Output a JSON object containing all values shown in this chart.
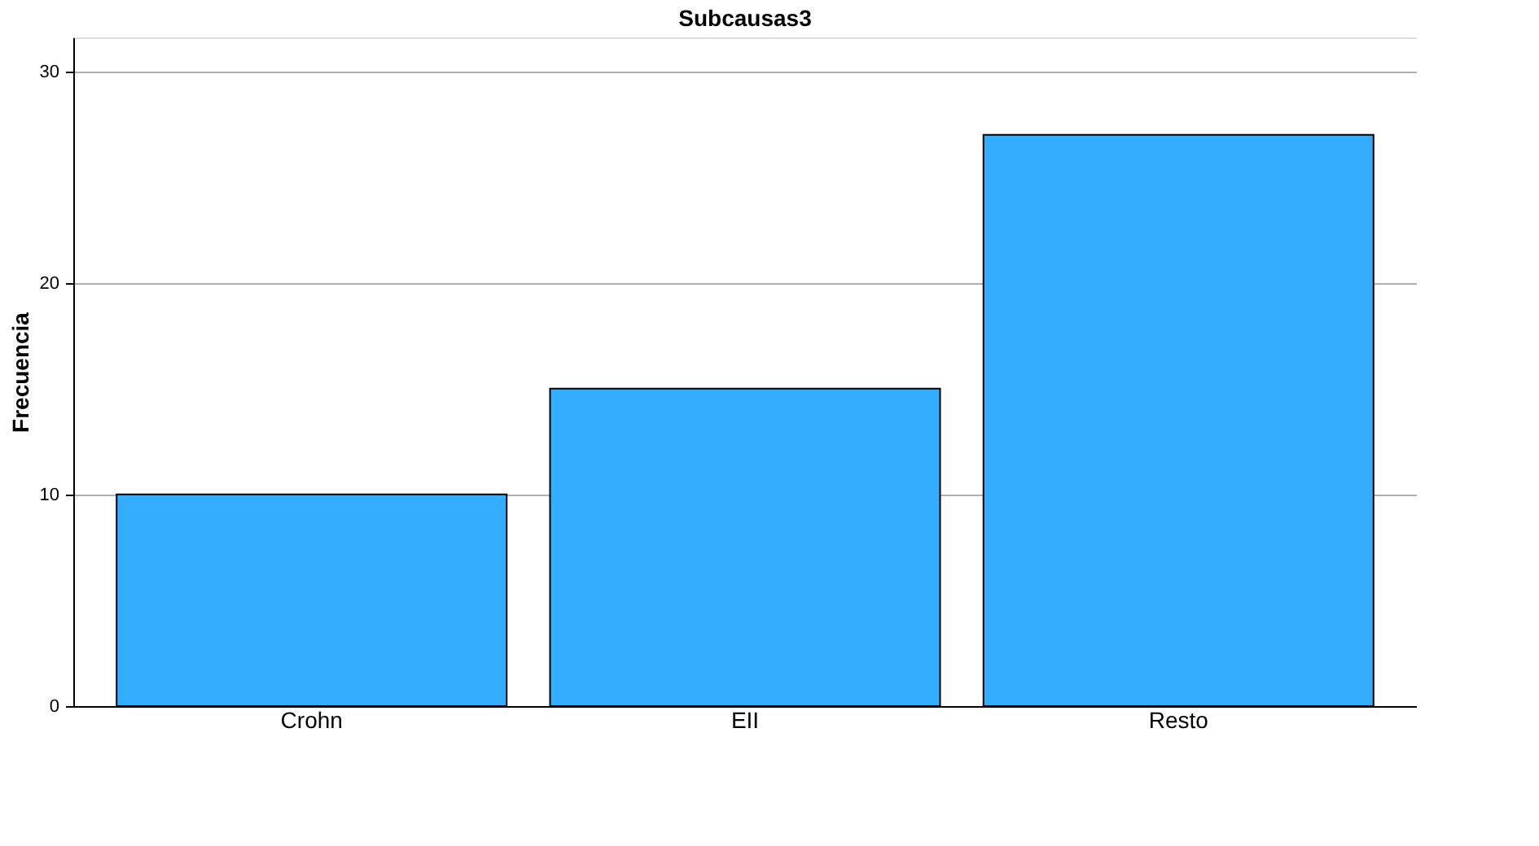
{
  "chart_data": {
    "type": "bar",
    "title": "Subcausas3",
    "ylabel": "Frecuencia",
    "categories": [
      "Crohn",
      "EII",
      "Resto"
    ],
    "values": [
      10,
      15,
      27
    ],
    "color": "#33adff",
    "ylim": [
      0,
      31.6
    ],
    "yticks": [
      0,
      10,
      20,
      30
    ],
    "grid": "y"
  }
}
